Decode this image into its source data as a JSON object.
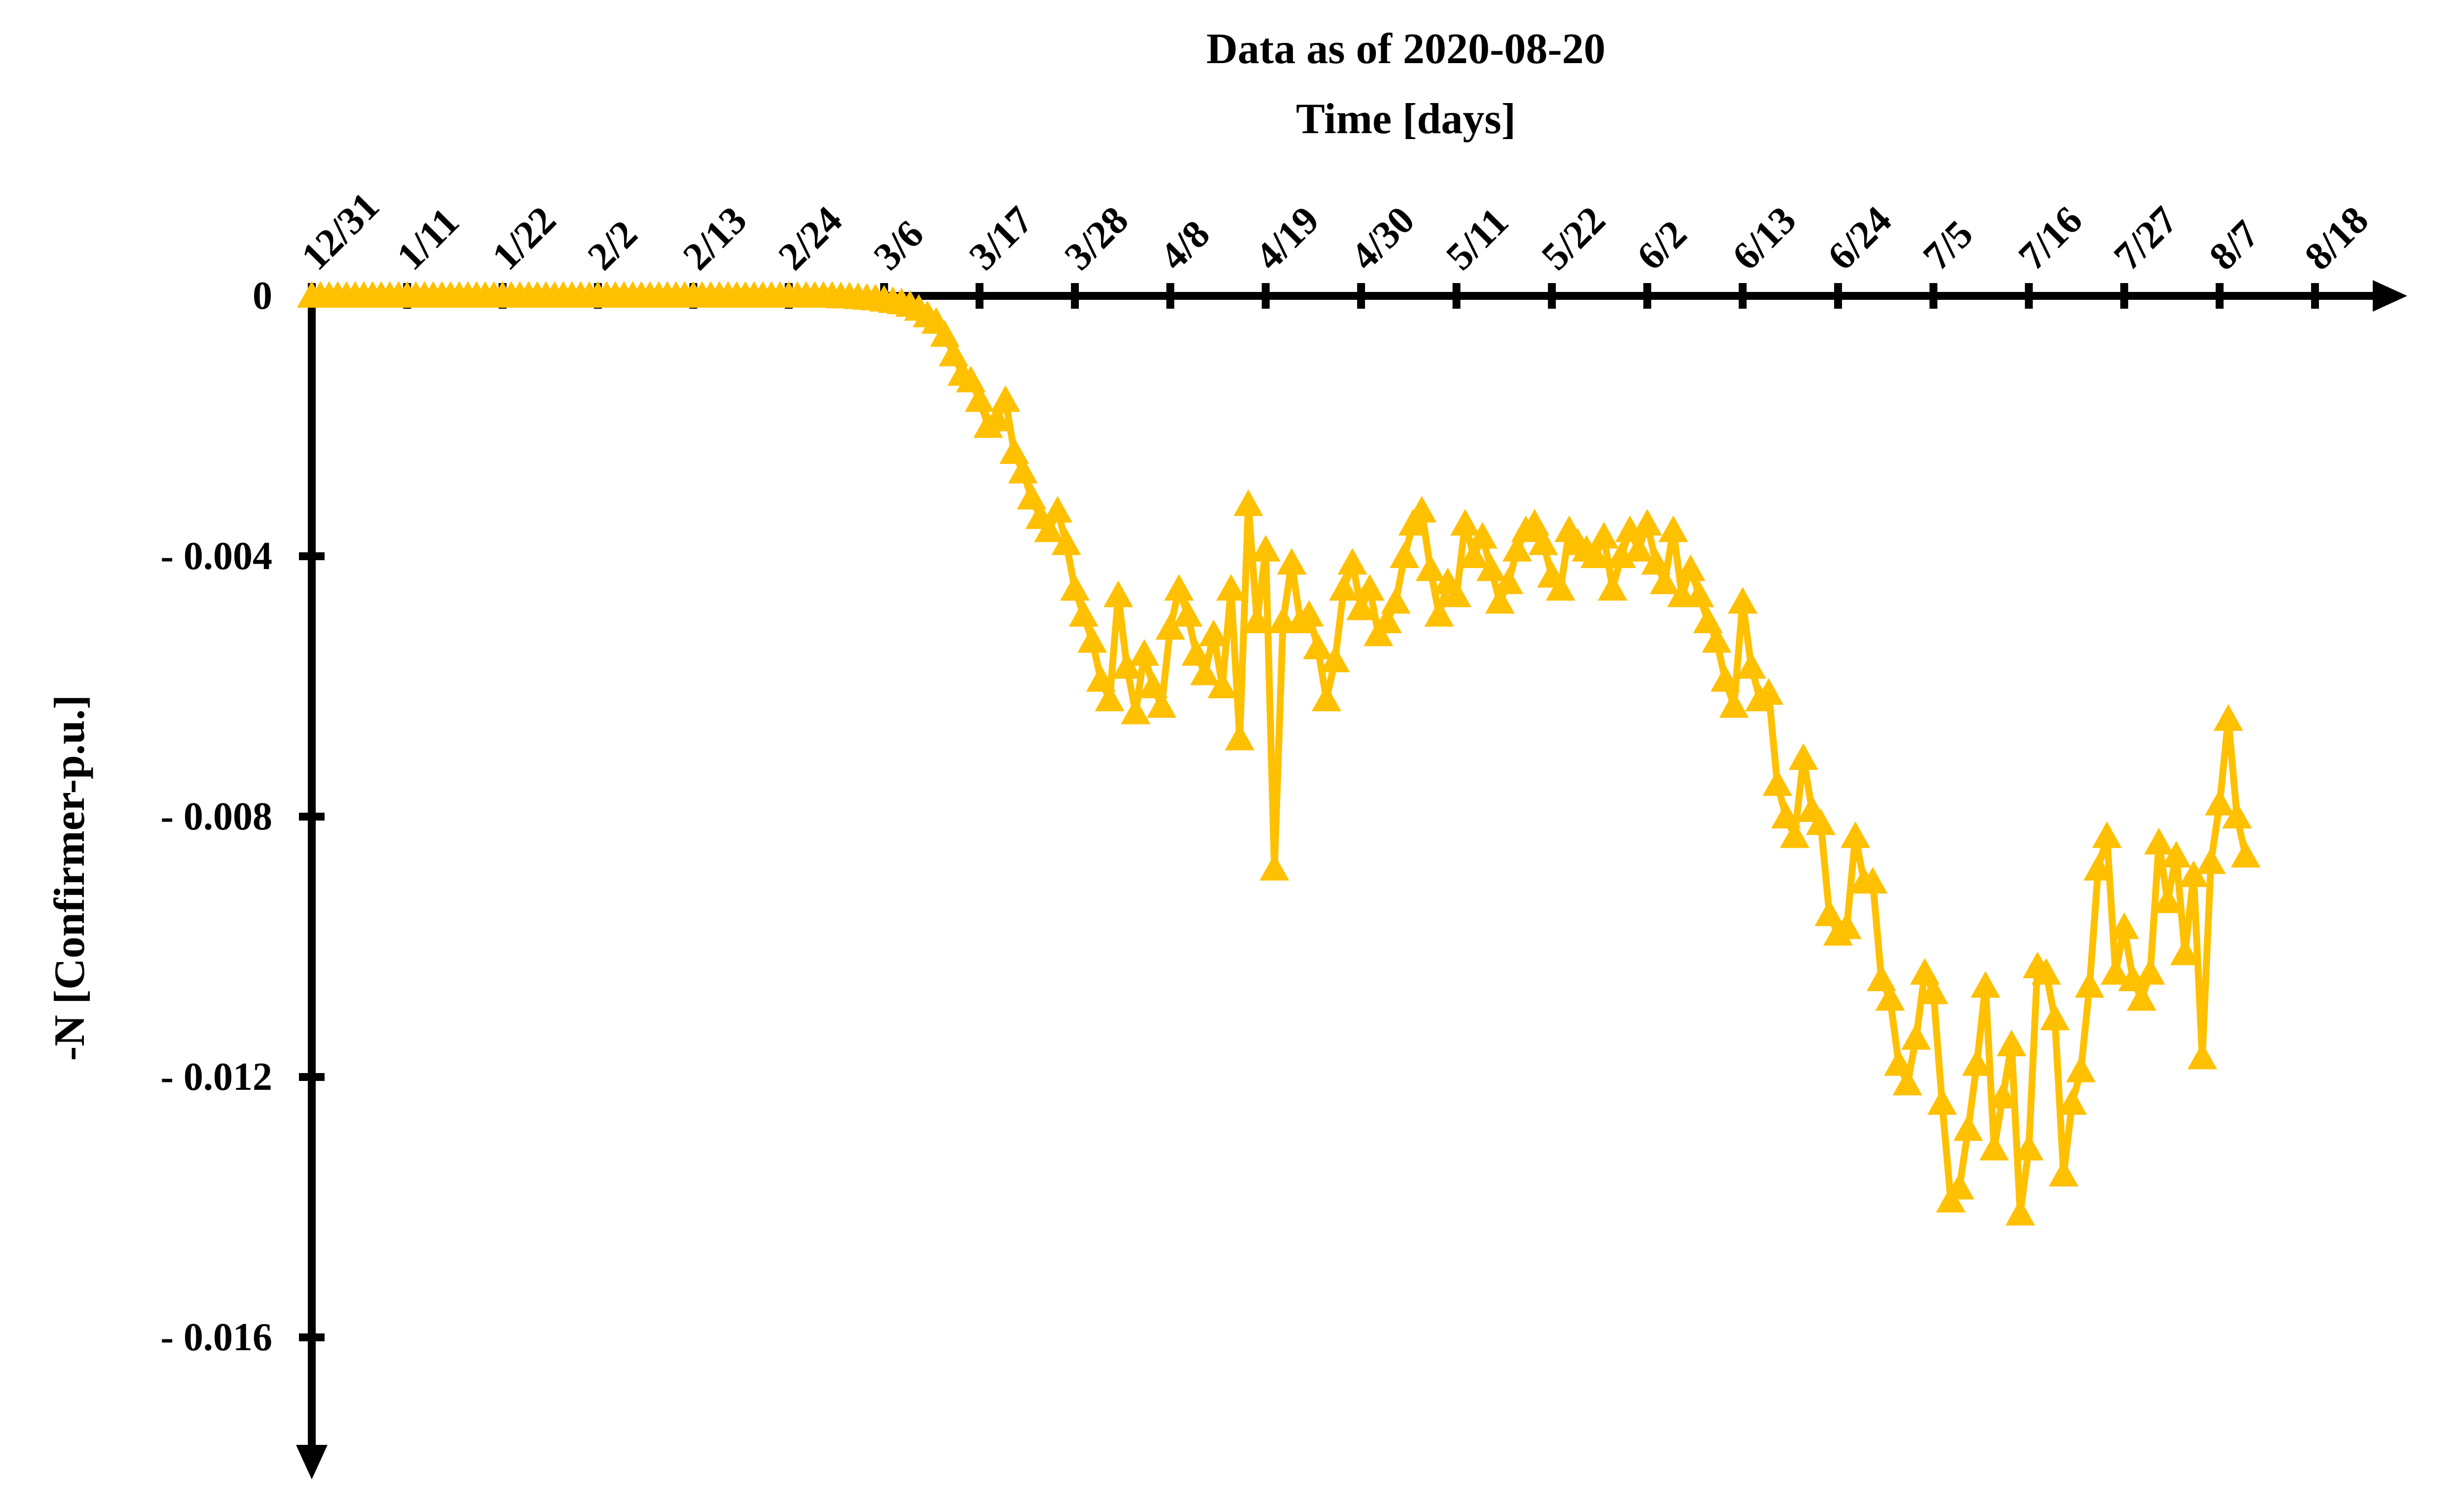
{
  "chart_data": {
    "type": "line",
    "title": "Data as of 2020-08-20",
    "xlabel": "Time [days]",
    "ylabel": "-N [Confirmer-p.u.]",
    "x_tick_labels": [
      "12/31",
      "1/11",
      "1/22",
      "2/2",
      "2/13",
      "2/24",
      "3/6",
      "3/17",
      "3/28",
      "4/8",
      "4/19",
      "4/30",
      "5/11",
      "5/22",
      "6/2",
      "6/13",
      "6/24",
      "7/5",
      "7/16",
      "7/27",
      "8/7",
      "8/18"
    ],
    "y_ticks": [
      0,
      -0.004,
      -0.008,
      -0.012,
      -0.016
    ],
    "y_tick_labels": [
      "0",
      "- 0.004",
      "- 0.008",
      "- 0.012",
      "- 0.016"
    ],
    "ylim": [
      -0.018,
      0
    ],
    "x_start": "2019-12-31",
    "x_end": "2020-08-20",
    "grid": false,
    "marker": "triangle",
    "color": "#FFC000",
    "axis_color": "#000000",
    "series": [
      {
        "values": [
          0,
          0,
          0,
          0,
          0,
          0,
          0,
          0,
          0,
          0,
          0,
          0,
          0,
          0,
          0,
          0,
          0,
          0,
          0,
          0,
          0,
          0,
          0,
          0,
          0,
          0,
          0,
          0,
          0,
          0,
          0,
          0,
          0,
          0,
          0,
          0,
          0,
          0,
          0,
          0,
          0,
          0,
          0,
          0,
          0,
          0,
          0,
          0,
          0,
          0,
          0,
          0,
          0,
          0,
          0,
          0,
          0,
          0,
          0,
          0,
          0,
          -1e-05,
          -1e-05,
          -2e-05,
          -3e-05,
          -4e-05,
          -6e-05,
          -8e-05,
          -0.0001,
          -0.00014,
          -0.0002,
          -0.0003,
          -0.0004,
          -0.0006,
          -0.0009,
          -0.0012,
          -0.0013,
          -0.0016,
          -0.002,
          -0.0019,
          -0.0016,
          -0.0024,
          -0.0027,
          -0.0031,
          -0.0034,
          -0.0036,
          -0.0033,
          -0.0038,
          -0.0045,
          -0.0049,
          -0.0053,
          -0.0059,
          -0.0062,
          -0.0046,
          -0.0057,
          -0.0064,
          -0.0055,
          -0.006,
          -0.0063,
          -0.0051,
          -0.0045,
          -0.0049,
          -0.0055,
          -0.0058,
          -0.0052,
          -0.006,
          -0.0045,
          -0.0068,
          -0.0032,
          -0.005,
          -0.0039,
          -0.0088,
          -0.005,
          -0.0041,
          -0.005,
          -0.0049,
          -0.0054,
          -0.0062,
          -0.0056,
          -0.0045,
          -0.0041,
          -0.0048,
          -0.0045,
          -0.0052,
          -0.005,
          -0.0047,
          -0.004,
          -0.0035,
          -0.0033,
          -0.0042,
          -0.0049,
          -0.0044,
          -0.0046,
          -0.0035,
          -0.004,
          -0.0037,
          -0.0042,
          -0.0047,
          -0.0044,
          -0.0039,
          -0.0036,
          -0.0035,
          -0.0038,
          -0.0043,
          -0.0045,
          -0.0036,
          -0.0038,
          -0.0039,
          -0.004,
          -0.0037,
          -0.0045,
          -0.004,
          -0.0036,
          -0.0039,
          -0.0035,
          -0.0041,
          -0.0044,
          -0.0036,
          -0.0046,
          -0.0042,
          -0.0046,
          -0.005,
          -0.0053,
          -0.0059,
          -0.0063,
          -0.0047,
          -0.0057,
          -0.0062,
          -0.0061,
          -0.0075,
          -0.008,
          -0.0083,
          -0.0071,
          -0.0079,
          -0.0081,
          -0.0095,
          -0.0098,
          -0.0097,
          -0.0083,
          -0.009,
          -0.009,
          -0.0105,
          -0.0108,
          -0.0118,
          -0.0121,
          -0.0114,
          -0.0104,
          -0.0107,
          -0.0124,
          -0.0139,
          -0.0137,
          -0.0128,
          -0.0118,
          -0.0106,
          -0.0131,
          -0.0123,
          -0.0115,
          -0.0141,
          -0.0131,
          -0.0103,
          -0.0104,
          -0.0111,
          -0.0135,
          -0.0124,
          -0.0119,
          -0.0106,
          -0.0088,
          -0.0083,
          -0.0104,
          -0.0097,
          -0.0105,
          -0.0108,
          -0.0104,
          -0.0084,
          -0.0093,
          -0.0086,
          -0.0101,
          -0.0089,
          -0.0117,
          -0.0087,
          -0.0078,
          -0.0065,
          -0.008,
          -0.0086
        ]
      }
    ]
  }
}
